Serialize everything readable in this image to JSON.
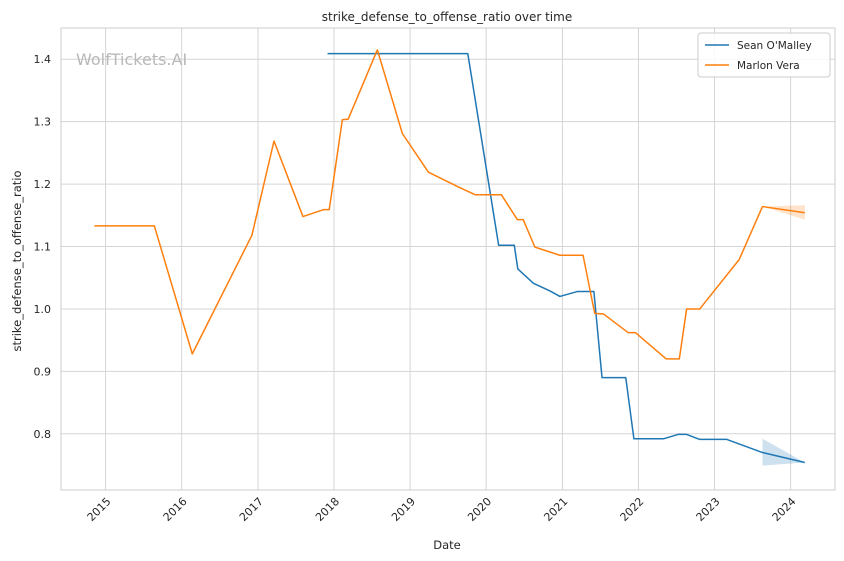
{
  "chart_data": {
    "type": "line",
    "title": "strike_defense_to_offense_ratio over time",
    "xlabel": "Date",
    "ylabel": "strike_defense_to_offense_ratio",
    "watermark": "WolfTickets.AI",
    "xlim": [
      "2014-06-01",
      "2024-08-01"
    ],
    "ylim": [
      0.71,
      1.45
    ],
    "x_ticks": [
      "2015",
      "2016",
      "2017",
      "2018",
      "2019",
      "2020",
      "2021",
      "2022",
      "2023",
      "2024"
    ],
    "y_ticks": [
      "0.8",
      "0.9",
      "1.0",
      "1.1",
      "1.2",
      "1.3",
      "1.4"
    ],
    "grid": true,
    "legend_position": "top-right",
    "series": [
      {
        "name": "Sean O'Malley",
        "color": "#1f77b4",
        "points": [
          [
            "2017-12-01",
            1.409
          ],
          [
            "2019-10-05",
            1.409
          ],
          [
            "2020-03-01",
            1.102
          ],
          [
            "2020-05-15",
            1.102
          ],
          [
            "2020-06-01",
            1.064
          ],
          [
            "2020-08-15",
            1.041
          ],
          [
            "2020-11-01",
            1.029
          ],
          [
            "2020-12-20",
            1.02
          ],
          [
            "2021-03-15",
            1.028
          ],
          [
            "2021-06-01",
            1.028
          ],
          [
            "2021-07-10",
            0.89
          ],
          [
            "2021-11-01",
            0.89
          ],
          [
            "2021-12-10",
            0.792
          ],
          [
            "2022-05-01",
            0.792
          ],
          [
            "2022-07-10",
            0.799
          ],
          [
            "2022-08-20",
            0.799
          ],
          [
            "2022-10-22",
            0.791
          ],
          [
            "2023-03-01",
            0.791
          ],
          [
            "2023-08-19",
            0.77
          ],
          [
            "2024-03-09",
            0.754
          ]
        ],
        "band": [
          [
            "2023-08-19",
            0.749,
            0.792
          ],
          [
            "2024-03-09",
            0.754,
            0.754
          ]
        ]
      },
      {
        "name": "Marlon Vera",
        "color": "#ff7f0e",
        "points": [
          [
            "2014-11-08",
            1.133
          ],
          [
            "2015-08-23",
            1.133
          ],
          [
            "2016-02-21",
            0.928
          ],
          [
            "2016-12-03",
            1.118
          ],
          [
            "2017-03-19",
            1.269
          ],
          [
            "2017-08-05",
            1.148
          ],
          [
            "2017-11-11",
            1.159
          ],
          [
            "2017-12-09",
            1.159
          ],
          [
            "2018-02-10",
            1.303
          ],
          [
            "2018-03-10",
            1.304
          ],
          [
            "2018-07-28",
            1.415
          ],
          [
            "2018-11-25",
            1.281
          ],
          [
            "2019-03-30",
            1.219
          ],
          [
            "2019-08-17",
            1.196
          ],
          [
            "2019-11-09",
            1.183
          ],
          [
            "2020-03-14",
            1.183
          ],
          [
            "2020-05-30",
            1.143
          ],
          [
            "2020-06-27",
            1.143
          ],
          [
            "2020-08-22",
            1.099
          ],
          [
            "2020-12-19",
            1.086
          ],
          [
            "2021-04-10",
            1.086
          ],
          [
            "2021-06-05",
            0.993
          ],
          [
            "2021-07-17",
            0.992
          ],
          [
            "2021-11-13",
            0.962
          ],
          [
            "2021-12-18",
            0.962
          ],
          [
            "2022-05-14",
            0.92
          ],
          [
            "2022-07-16",
            0.92
          ],
          [
            "2022-08-20",
            1.0
          ],
          [
            "2022-10-22",
            1.0
          ],
          [
            "2023-04-29",
            1.079
          ],
          [
            "2023-08-19",
            1.164
          ],
          [
            "2024-03-09",
            1.154
          ]
        ],
        "band": [
          [
            "2023-08-19",
            1.164,
            1.164
          ],
          [
            "2024-03-09",
            1.143,
            1.166
          ]
        ]
      }
    ]
  }
}
